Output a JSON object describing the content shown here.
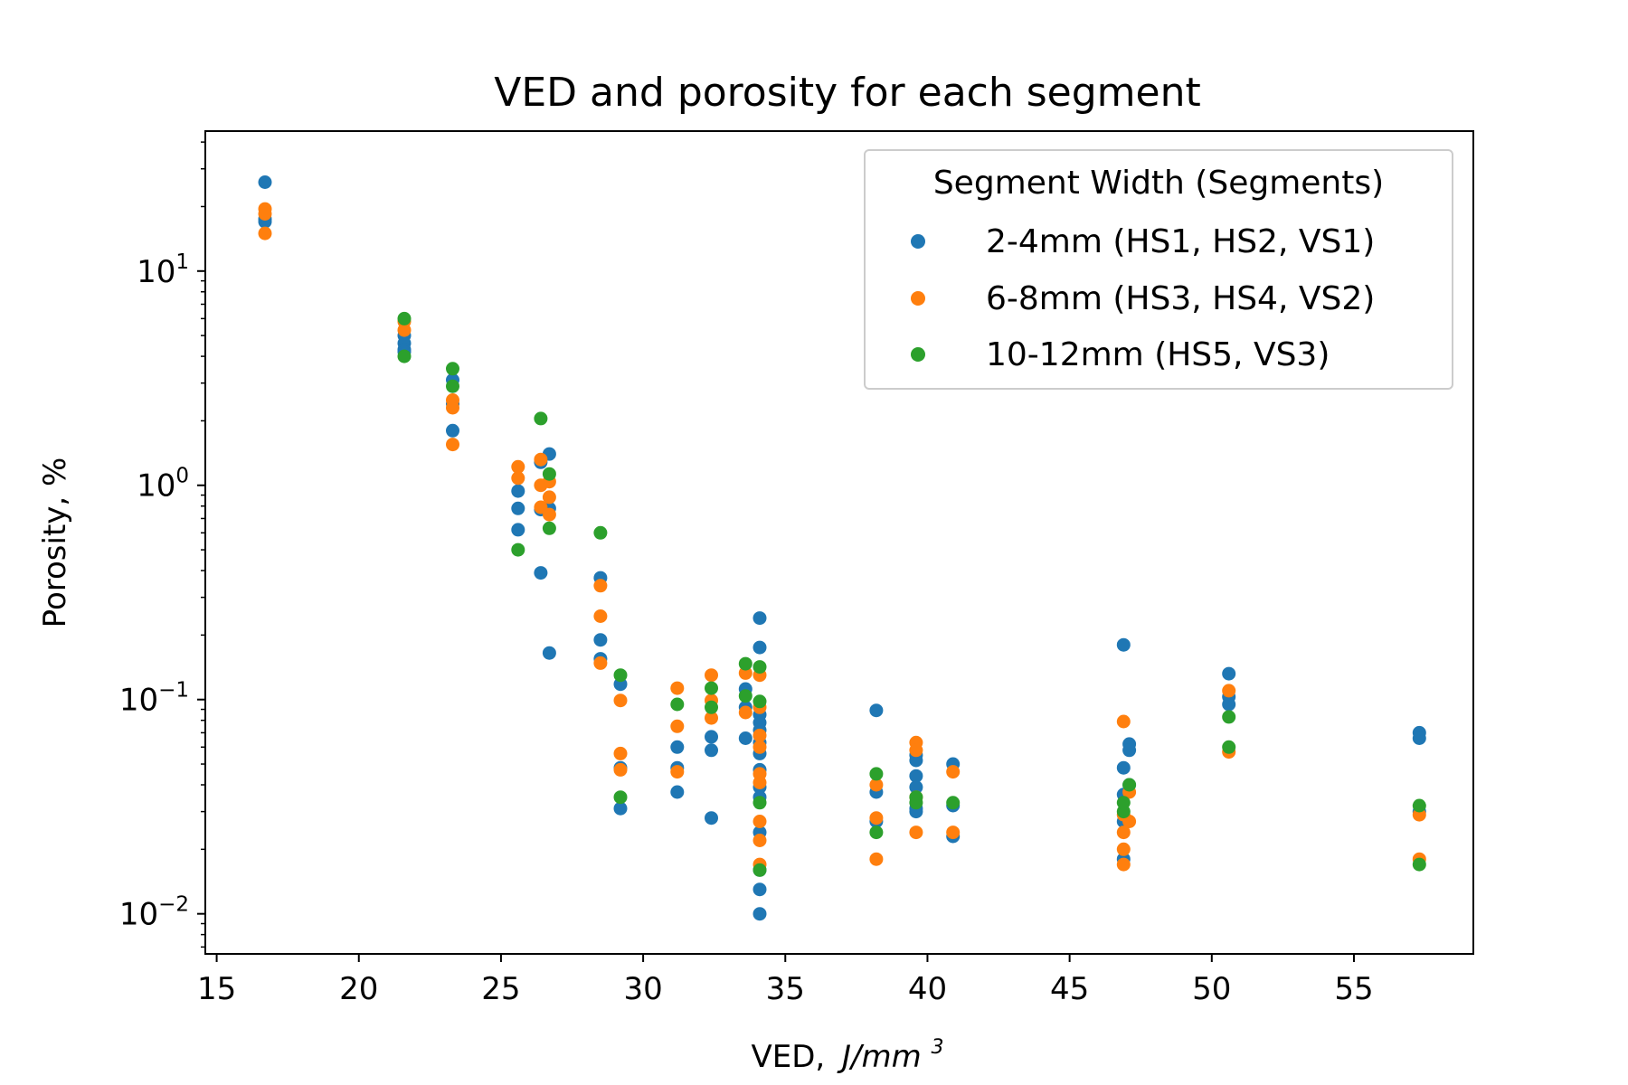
{
  "chart_data": {
    "type": "scatter",
    "title": "VED and porosity for each segment",
    "xlabel": "VED,",
    "xlabel_unit": "J/mm",
    "xlabel_unit_exp": "3",
    "ylabel": "Porosity, %",
    "xlim": [
      14.6,
      59.2
    ],
    "ylim": [
      0.0065,
      45
    ],
    "yscale": "log",
    "xticks": [
      15,
      20,
      25,
      30,
      35,
      40,
      45,
      50,
      55
    ],
    "yticks": [
      {
        "value": 10,
        "base": "10",
        "exp": "1"
      },
      {
        "value": 1,
        "base": "10",
        "exp": "0"
      },
      {
        "value": 0.1,
        "base": "10",
        "exp": "−1"
      },
      {
        "value": 0.01,
        "base": "10",
        "exp": "−2"
      }
    ],
    "grid": false,
    "legend": {
      "title": "Segment Width (Segments)",
      "position": "top-right"
    },
    "series": [
      {
        "name": "2-4mm (HS1, HS2, VS1)",
        "color": "#1f77b4",
        "points": [
          [
            16.7,
            26
          ],
          [
            16.7,
            17.5
          ],
          [
            16.7,
            17
          ],
          [
            21.6,
            5.0
          ],
          [
            21.6,
            4.6
          ],
          [
            21.6,
            4.3
          ],
          [
            21.6,
            4.2
          ],
          [
            23.3,
            3.1
          ],
          [
            23.3,
            2.4
          ],
          [
            23.3,
            1.8
          ],
          [
            25.6,
            0.94
          ],
          [
            25.6,
            0.78
          ],
          [
            25.6,
            0.62
          ],
          [
            26.4,
            1.28
          ],
          [
            26.4,
            0.77
          ],
          [
            26.4,
            0.39
          ],
          [
            26.7,
            1.4
          ],
          [
            26.7,
            0.78
          ],
          [
            26.7,
            0.165
          ],
          [
            28.5,
            0.37
          ],
          [
            28.5,
            0.19
          ],
          [
            28.5,
            0.155
          ],
          [
            29.2,
            0.118
          ],
          [
            29.2,
            0.048
          ],
          [
            29.2,
            0.031
          ],
          [
            31.2,
            0.06
          ],
          [
            31.2,
            0.048
          ],
          [
            31.2,
            0.037
          ],
          [
            32.4,
            0.067
          ],
          [
            32.4,
            0.058
          ],
          [
            32.4,
            0.028
          ],
          [
            33.6,
            0.112
          ],
          [
            33.6,
            0.092
          ],
          [
            33.6,
            0.066
          ],
          [
            34.1,
            0.24
          ],
          [
            34.1,
            0.175
          ],
          [
            34.1,
            0.085
          ],
          [
            34.1,
            0.078
          ],
          [
            34.1,
            0.072
          ],
          [
            34.1,
            0.063
          ],
          [
            34.1,
            0.056
          ],
          [
            34.1,
            0.047
          ],
          [
            34.1,
            0.039
          ],
          [
            34.1,
            0.035
          ],
          [
            34.1,
            0.024
          ],
          [
            34.1,
            0.016
          ],
          [
            34.1,
            0.013
          ],
          [
            34.1,
            0.01
          ],
          [
            38.2,
            0.089
          ],
          [
            38.2,
            0.037
          ],
          [
            38.2,
            0.027
          ],
          [
            39.6,
            0.055
          ],
          [
            39.6,
            0.052
          ],
          [
            39.6,
            0.044
          ],
          [
            39.6,
            0.039
          ],
          [
            39.6,
            0.031
          ],
          [
            39.6,
            0.03
          ],
          [
            40.9,
            0.05
          ],
          [
            40.9,
            0.032
          ],
          [
            40.9,
            0.023
          ],
          [
            46.9,
            0.18
          ],
          [
            46.9,
            0.048
          ],
          [
            46.9,
            0.036
          ],
          [
            46.9,
            0.027
          ],
          [
            46.9,
            0.018
          ],
          [
            47.1,
            0.062
          ],
          [
            47.1,
            0.058
          ],
          [
            47.1,
            0.04
          ],
          [
            50.6,
            0.132
          ],
          [
            50.6,
            0.103
          ],
          [
            50.6,
            0.095
          ],
          [
            57.3,
            0.07
          ],
          [
            57.3,
            0.066
          ],
          [
            57.3,
            0.03
          ]
        ]
      },
      {
        "name": "6-8mm (HS3, HS4, VS2)",
        "color": "#ff7f0e",
        "points": [
          [
            16.7,
            19.5
          ],
          [
            16.7,
            18.5
          ],
          [
            16.7,
            15
          ],
          [
            21.6,
            5.8
          ],
          [
            21.6,
            5.3
          ],
          [
            23.3,
            2.5
          ],
          [
            23.3,
            2.3
          ],
          [
            23.3,
            1.55
          ],
          [
            25.6,
            1.22
          ],
          [
            25.6,
            1.08
          ],
          [
            26.4,
            1.32
          ],
          [
            26.4,
            1.0
          ],
          [
            26.4,
            0.79
          ],
          [
            26.7,
            1.04
          ],
          [
            26.7,
            0.88
          ],
          [
            26.7,
            0.73
          ],
          [
            28.5,
            0.34
          ],
          [
            28.5,
            0.245
          ],
          [
            28.5,
            0.148
          ],
          [
            29.2,
            0.099
          ],
          [
            29.2,
            0.056
          ],
          [
            29.2,
            0.047
          ],
          [
            31.2,
            0.113
          ],
          [
            31.2,
            0.075
          ],
          [
            31.2,
            0.046
          ],
          [
            32.4,
            0.13
          ],
          [
            32.4,
            0.099
          ],
          [
            32.4,
            0.082
          ],
          [
            33.6,
            0.133
          ],
          [
            33.6,
            0.087
          ],
          [
            34.1,
            0.13
          ],
          [
            34.1,
            0.092
          ],
          [
            34.1,
            0.068
          ],
          [
            34.1,
            0.06
          ],
          [
            34.1,
            0.045
          ],
          [
            34.1,
            0.041
          ],
          [
            34.1,
            0.027
          ],
          [
            34.1,
            0.022
          ],
          [
            34.1,
            0.017
          ],
          [
            38.2,
            0.04
          ],
          [
            38.2,
            0.028
          ],
          [
            38.2,
            0.018
          ],
          [
            39.6,
            0.063
          ],
          [
            39.6,
            0.058
          ],
          [
            39.6,
            0.035
          ],
          [
            39.6,
            0.024
          ],
          [
            40.9,
            0.046
          ],
          [
            40.9,
            0.024
          ],
          [
            46.9,
            0.079
          ],
          [
            46.9,
            0.029
          ],
          [
            46.9,
            0.024
          ],
          [
            46.9,
            0.02
          ],
          [
            46.9,
            0.017
          ],
          [
            47.1,
            0.037
          ],
          [
            47.1,
            0.027
          ],
          [
            50.6,
            0.11
          ],
          [
            50.6,
            0.057
          ],
          [
            57.3,
            0.029
          ],
          [
            57.3,
            0.018
          ]
        ]
      },
      {
        "name": "10-12mm (HS5, VS3)",
        "color": "#2ca02c",
        "points": [
          [
            21.6,
            6.0
          ],
          [
            21.6,
            4.0
          ],
          [
            23.3,
            3.5
          ],
          [
            23.3,
            2.9
          ],
          [
            25.6,
            0.5
          ],
          [
            26.4,
            2.05
          ],
          [
            26.7,
            1.13
          ],
          [
            26.7,
            0.63
          ],
          [
            28.5,
            0.6
          ],
          [
            29.2,
            0.13
          ],
          [
            29.2,
            0.035
          ],
          [
            31.2,
            0.095
          ],
          [
            32.4,
            0.113
          ],
          [
            32.4,
            0.092
          ],
          [
            33.6,
            0.147
          ],
          [
            33.6,
            0.104
          ],
          [
            34.1,
            0.142
          ],
          [
            34.1,
            0.098
          ],
          [
            34.1,
            0.033
          ],
          [
            34.1,
            0.016
          ],
          [
            38.2,
            0.045
          ],
          [
            38.2,
            0.024
          ],
          [
            39.6,
            0.035
          ],
          [
            39.6,
            0.033
          ],
          [
            40.9,
            0.033
          ],
          [
            46.9,
            0.03
          ],
          [
            46.9,
            0.033
          ],
          [
            47.1,
            0.04
          ],
          [
            50.6,
            0.083
          ],
          [
            50.6,
            0.06
          ],
          [
            57.3,
            0.032
          ],
          [
            57.3,
            0.017
          ]
        ]
      }
    ]
  }
}
